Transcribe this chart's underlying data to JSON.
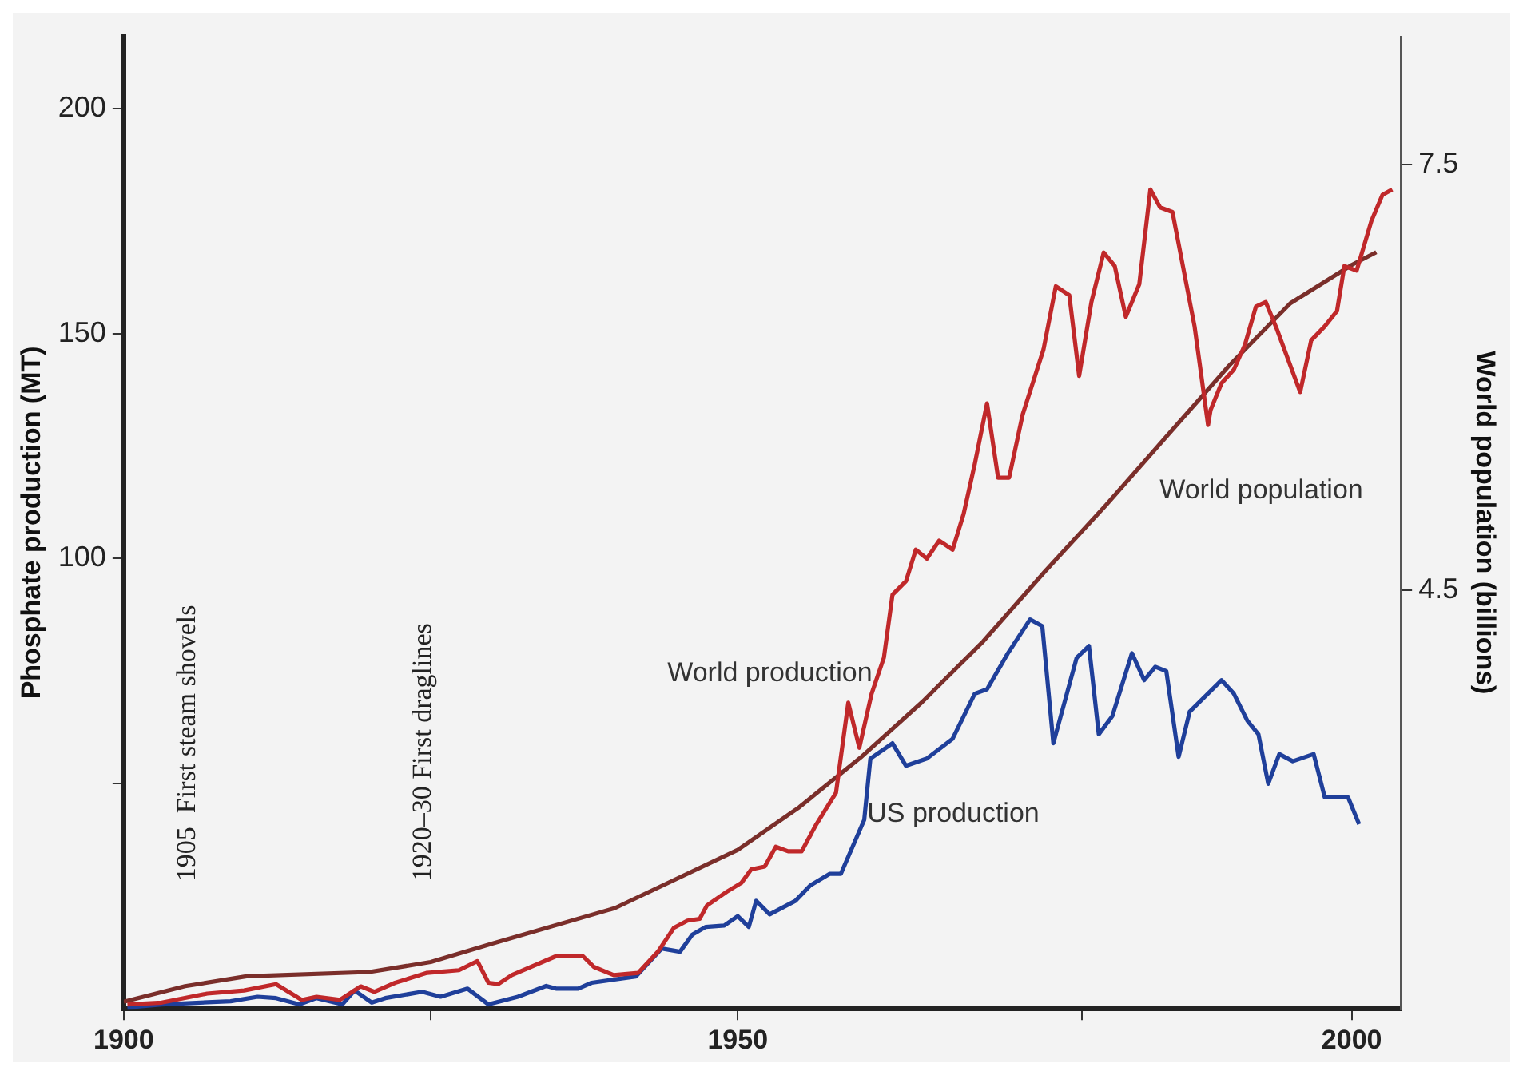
{
  "chart_data": {
    "type": "line",
    "ylabel": "Phosphate production (MT)",
    "y2label": "World population (billions)",
    "xlim": [
      1900,
      2004
    ],
    "xticks": [
      1900,
      {
        "value": 1925,
        "label": null
      },
      1950,
      {
        "value": 1978,
        "label": null
      },
      2000
    ],
    "ylim": [
      0,
      216
    ],
    "yticks": [
      {
        "value": 50,
        "label": null
      },
      100,
      150,
      200
    ],
    "y2lim": [
      1.55,
      8.4
    ],
    "y2ticks": [
      4.5,
      7.5
    ],
    "grid": false,
    "legend": false,
    "annotations": [
      "1905  First steam shovels",
      "1920–30 First draglines"
    ],
    "series": [
      {
        "name": "World production",
        "color": "#c0282a",
        "x": [
          1900.3,
          1903.1,
          1906.8,
          1909.8,
          1912.4,
          1914.5,
          1915.7,
          1917.6,
          1919.3,
          1920.4,
          1922.1,
          1924.7,
          1927.3,
          1928.8,
          1929.7,
          1930.5,
          1931.6,
          1935.2,
          1937.4,
          1938.3,
          1939.9,
          1941.9,
          1943.5,
          1944.8,
          1945.9,
          1946.9,
          1947.5,
          1949.1,
          1950.3,
          1951.1,
          1952.2,
          1953.1,
          1954.1,
          1955.2,
          1956.4,
          1958,
          1959,
          1959.9,
          1960.9,
          1961.9,
          1962.6,
          1963.7,
          1964.5,
          1965.4,
          1966.4,
          1967.5,
          1968.4,
          1969.3,
          1970.3,
          1971.2,
          1972.1,
          1973.2,
          1974.9,
          1975.9,
          1977,
          1977.8,
          1978.8,
          1979.8,
          1980.7,
          1981.6,
          1982.7,
          1983.6,
          1984.4,
          1985.4,
          1987.2,
          1988.3,
          1988.5,
          1989.4,
          1990.4,
          1991.3,
          1992.2,
          1993,
          1993.9,
          1995.8,
          1996.7,
          1997.8,
          1998.8,
          1999.4,
          2000.4,
          2001.6,
          2002.5,
          2003.3
        ],
        "values": [
          1,
          1.4,
          3.4,
          4.1,
          5.5,
          2,
          2.7,
          2,
          5,
          3.8,
          5.8,
          8,
          8.6,
          10.6,
          5.8,
          5.5,
          7.5,
          11.7,
          11.7,
          9.3,
          7.5,
          8,
          12.7,
          18,
          19.6,
          20,
          23,
          26,
          28,
          31,
          31.6,
          36,
          35,
          35,
          41,
          48,
          68,
          58,
          70,
          78,
          92,
          95,
          102,
          100,
          104,
          102,
          110,
          121,
          134.5,
          118,
          118,
          132,
          146.5,
          160.5,
          158.5,
          140.6,
          157,
          168,
          165,
          153.7,
          161,
          182,
          178,
          177,
          151.6,
          129.7,
          133,
          139,
          142,
          147.5,
          156,
          157,
          151,
          137,
          148.5,
          151.6,
          155,
          165,
          164,
          175,
          180.8,
          182
        ]
      },
      {
        "name": "US production",
        "color": "#1f3f9a",
        "x": [
          1900.3,
          1903.1,
          1908.7,
          1910.9,
          1912.4,
          1914.3,
          1915.7,
          1917.8,
          1918.8,
          1920.2,
          1921.3,
          1924.3,
          1925.8,
          1928,
          1929.7,
          1932.1,
          1934.4,
          1935.2,
          1937,
          1938.1,
          1941.7,
          1943.8,
          1945.3,
          1946.3,
          1947.4,
          1948.9,
          1950,
          1950.9,
          1951.5,
          1952.6,
          1954.7,
          1955.9,
          1957.5,
          1958.4,
          1960.3,
          1960.8,
          1962.6,
          1963.7,
          1965.4,
          1967.5,
          1969.3,
          1970.3,
          1972,
          1973.8,
          1974.8,
          1975.7,
          1977.6,
          1978.6,
          1979.4,
          1980.5,
          1982.1,
          1983.1,
          1984,
          1984.9,
          1985.9,
          1986.8,
          1989.4,
          1990.4,
          1991.5,
          1992.4,
          1993.2,
          1994.1,
          1995.2,
          1996.9,
          1997.8,
          1999.7,
          2000.6
        ],
        "values": [
          0.3,
          1,
          1.7,
          2.7,
          2.4,
          1,
          2.4,
          1,
          4.1,
          1.4,
          2.4,
          3.8,
          2.7,
          4.5,
          1,
          2.7,
          5.1,
          4.5,
          4.5,
          5.8,
          7.2,
          13.4,
          12.7,
          16.5,
          18.2,
          18.5,
          20.6,
          18.2,
          24,
          21,
          24,
          27.4,
          30,
          30,
          42,
          55.6,
          59,
          54,
          55.6,
          60,
          70,
          71,
          79,
          86.5,
          85,
          59,
          78,
          80.6,
          61,
          65,
          79,
          73,
          76,
          75,
          56,
          66,
          73,
          70,
          64,
          61,
          50,
          56.6,
          55,
          56.6,
          47,
          47,
          41
        ]
      },
      {
        "name": "World population",
        "color": "#7a2e2a",
        "axis": "y2",
        "x": [
          1900,
          1905,
          1910,
          1920,
          1925,
          1930,
          1940,
          1950,
          1955,
          1960,
          1965,
          1970,
          1975,
          1980,
          1985,
          1990,
          1995,
          2000,
          2002
        ],
        "values": [
          1.6,
          1.71,
          1.78,
          1.81,
          1.88,
          2.01,
          2.26,
          2.67,
          2.97,
          3.32,
          3.71,
          4.14,
          4.63,
          5.1,
          5.59,
          6.08,
          6.52,
          6.79,
          6.88
        ]
      }
    ]
  }
}
